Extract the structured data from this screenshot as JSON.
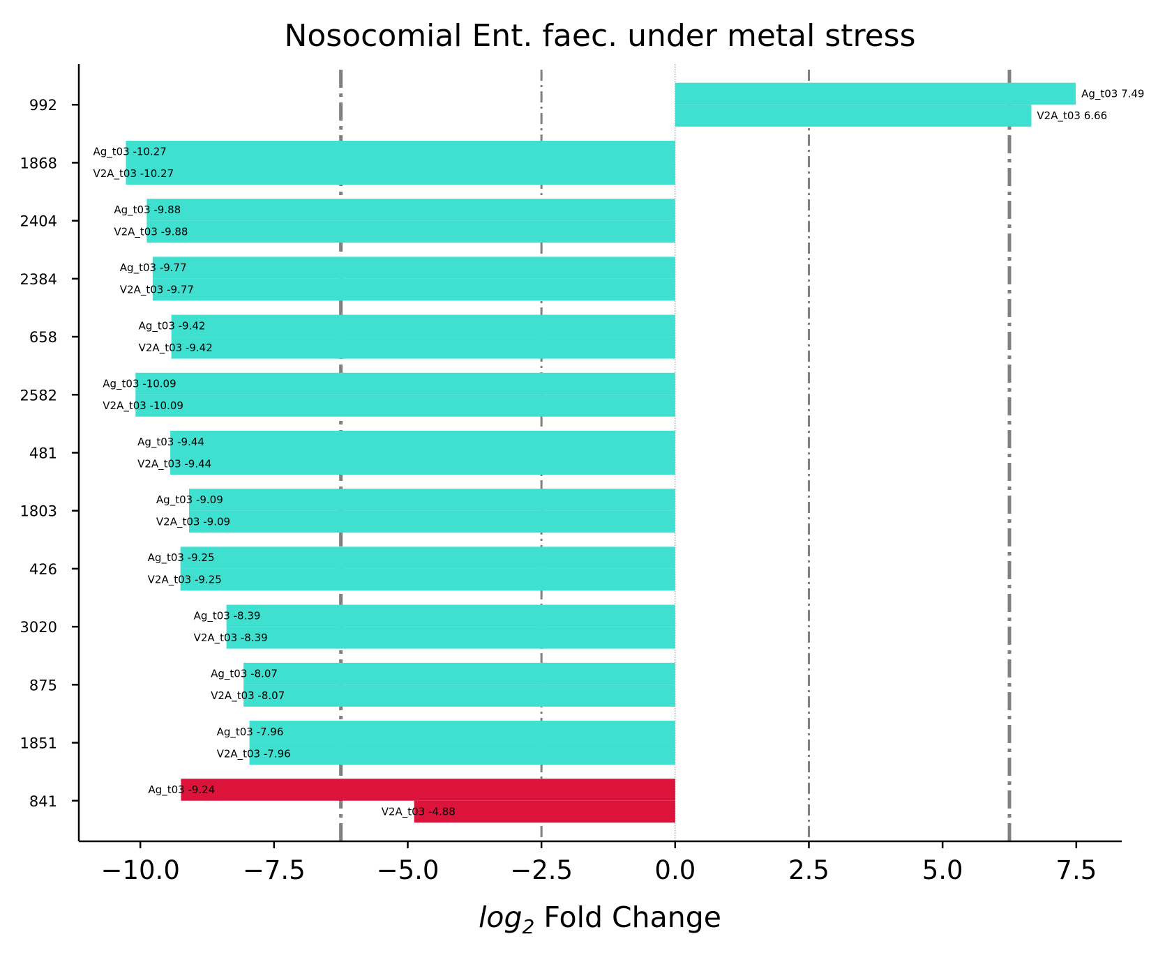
{
  "chart_data": {
    "type": "bar",
    "orientation": "horizontal",
    "title": "Nosocomial Ent. faec. under metal stress",
    "xlabel_main": "log",
    "xlabel_sub": "2",
    "xlabel_rest": " Fold Change",
    "xlim": [
      -11.15,
      8.35
    ],
    "x_ticks": [
      -10.0,
      -7.5,
      -5.0,
      -2.5,
      0.0,
      2.5,
      5.0,
      7.5
    ],
    "x_tick_labels": [
      "−10.0",
      "−7.5",
      "−5.0",
      "−2.5",
      "0.0",
      "2.5",
      "5.0",
      "7.5"
    ],
    "reference_lines": [
      {
        "x": -6.25,
        "style": "dashdot",
        "weight": "thick"
      },
      {
        "x": -2.5,
        "style": "dashdot",
        "weight": "thin"
      },
      {
        "x": 2.5,
        "style": "dashdot",
        "weight": "thin"
      },
      {
        "x": 6.25,
        "style": "dashdot",
        "weight": "thick"
      },
      {
        "x": 0.0,
        "style": "dotted",
        "weight": "hairline"
      }
    ],
    "categories": [
      "992",
      "1868",
      "2404",
      "2384",
      "658",
      "2582",
      "481",
      "1803",
      "426",
      "3020",
      "875",
      "1851",
      "841"
    ],
    "series": [
      {
        "name": "Ag_t03",
        "values": [
          7.49,
          -10.27,
          -9.88,
          -9.77,
          -9.42,
          -10.09,
          -9.44,
          -9.09,
          -9.25,
          -8.39,
          -8.07,
          -7.96,
          -9.24
        ]
      },
      {
        "name": "V2A_t03",
        "values": [
          6.66,
          -10.27,
          -9.88,
          -9.77,
          -9.42,
          -10.09,
          -9.44,
          -9.09,
          -9.25,
          -8.39,
          -8.07,
          -7.96,
          -4.88
        ]
      }
    ],
    "bar_colors": [
      "#40e0d0",
      "#40e0d0",
      "#40e0d0",
      "#40e0d0",
      "#40e0d0",
      "#40e0d0",
      "#40e0d0",
      "#40e0d0",
      "#40e0d0",
      "#40e0d0",
      "#40e0d0",
      "#40e0d0",
      "#dc143c"
    ],
    "bar_labels": [
      [
        "Ag_t03 7.49",
        "V2A_t03 6.66"
      ],
      [
        "Ag_t03 -10.27",
        "V2A_t03 -10.27"
      ],
      [
        "Ag_t03 -9.88",
        "V2A_t03 -9.88"
      ],
      [
        "Ag_t03 -9.77",
        "V2A_t03 -9.77"
      ],
      [
        "Ag_t03 -9.42",
        "V2A_t03 -9.42"
      ],
      [
        "Ag_t03 -10.09",
        "V2A_t03 -10.09"
      ],
      [
        "Ag_t03 -9.44",
        "V2A_t03 -9.44"
      ],
      [
        "Ag_t03 -9.09",
        "V2A_t03 -9.09"
      ],
      [
        "Ag_t03 -9.25",
        "V2A_t03 -9.25"
      ],
      [
        "Ag_t03 -8.39",
        "V2A_t03 -8.39"
      ],
      [
        "Ag_t03 -8.07",
        "V2A_t03 -8.07"
      ],
      [
        "Ag_t03 -7.96",
        "V2A_t03 -7.96"
      ],
      [
        "Ag_t03 -9.24",
        "V2A_t03 -4.88"
      ]
    ],
    "grid": false,
    "legend": "none",
    "axis_color": "#000000",
    "reference_line_color": "#808080"
  }
}
